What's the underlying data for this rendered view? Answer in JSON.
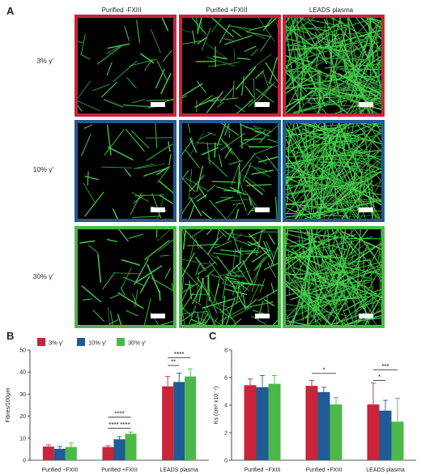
{
  "panel_a": {
    "letter": "A",
    "columns": [
      "Purified -FXIII",
      "Purified +FXIII",
      "LEADS plasma"
    ],
    "rows": [
      {
        "label": "3% γ'",
        "color": "#c9243a"
      },
      {
        "label": "10% γ'",
        "color": "#1f5b94"
      },
      {
        "label": "30% γ'",
        "color": "#4cb84a"
      }
    ]
  },
  "chart_data": [
    {
      "panel": "B",
      "type": "bar",
      "ylabel": "Fibres/100μm",
      "ylim": [
        0,
        50
      ],
      "yticks": [
        "0",
        "10",
        "20",
        "30",
        "40",
        "50"
      ],
      "categories": [
        "Purified −FXIII",
        "Purified +FXIII",
        "LEADS plasma"
      ],
      "legend": [
        {
          "name": "3% γ'",
          "color": "#c9243a"
        },
        {
          "name": "10% γ'",
          "color": "#1f5b94"
        },
        {
          "name": "30% γ'",
          "color": "#4cb84a"
        }
      ],
      "series": [
        {
          "name": "3% γ'",
          "values": [
            6.2,
            6.0,
            33.5
          ],
          "err": [
            0.8,
            0.6,
            4.5
          ]
        },
        {
          "name": "10% γ'",
          "values": [
            5.2,
            9.5,
            35.5
          ],
          "err": [
            1.0,
            1.2,
            4.0
          ]
        },
        {
          "name": "30% γ'",
          "values": [
            6.0,
            12.0,
            38.0
          ],
          "err": [
            1.8,
            0.8,
            3.5
          ]
        }
      ],
      "significance": [
        {
          "cat": 1,
          "from": 1,
          "to": 2,
          "y": 14.5,
          "label": "****"
        },
        {
          "cat": 1,
          "from": 0,
          "to": 1,
          "y": 14.5,
          "label": "****"
        },
        {
          "cat": 1,
          "from": 0,
          "to": 2,
          "y": 19.5,
          "label": "****"
        },
        {
          "cat": 2,
          "from": 0,
          "to": 1,
          "y": 43.0,
          "label": "**"
        },
        {
          "cat": 2,
          "from": 0,
          "to": 2,
          "y": 46.5,
          "label": "****"
        }
      ]
    },
    {
      "panel": "C",
      "type": "bar",
      "ylabel": "Ks (cm² x10⁻⁹)",
      "ylim": [
        0,
        8
      ],
      "yticks": [
        "0",
        "2",
        "4",
        "6",
        "8"
      ],
      "categories": [
        "Purified −FXIII",
        "Purified +FXIII",
        "LEADS plasma"
      ],
      "series": [
        {
          "name": "3% γ'",
          "values": [
            5.45,
            5.4,
            4.05
          ],
          "err": [
            0.45,
            0.4,
            1.55
          ]
        },
        {
          "name": "10% γ'",
          "values": [
            5.3,
            4.95,
            3.6
          ],
          "err": [
            0.85,
            0.35,
            0.75
          ]
        },
        {
          "name": "30% γ'",
          "values": [
            5.55,
            4.05,
            2.8
          ],
          "err": [
            0.6,
            0.5,
            1.7
          ]
        }
      ],
      "significance": [
        {
          "cat": 1,
          "from": 0,
          "to": 2,
          "y": 6.3,
          "label": "*"
        },
        {
          "cat": 2,
          "from": 0,
          "to": 1,
          "y": 5.8,
          "label": "*"
        },
        {
          "cat": 2,
          "from": 0,
          "to": 2,
          "y": 6.55,
          "label": "***"
        }
      ]
    }
  ]
}
